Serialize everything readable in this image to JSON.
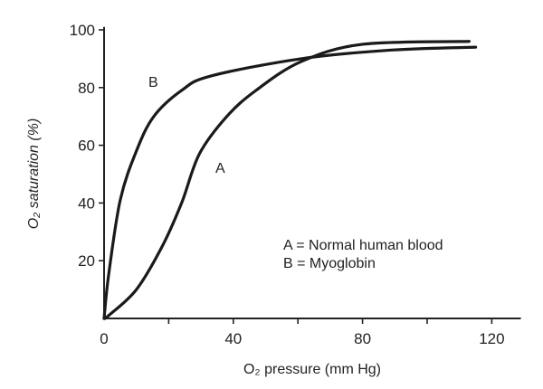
{
  "chart_data": {
    "type": "line",
    "title": "",
    "xlabel": "O₂ pressure (mm Hg)",
    "ylabel": "O₂ saturation (%)",
    "xlim": [
      0,
      129
    ],
    "ylim": [
      0,
      101
    ],
    "xticks": [
      0,
      40,
      80,
      120
    ],
    "xticks_minor": [
      20,
      60,
      100
    ],
    "yticks": [
      20,
      40,
      60,
      80,
      100
    ],
    "grid": false,
    "series": [
      {
        "name": "A",
        "label": "A",
        "legend": "A = Normal human blood",
        "x": [
          0,
          1.4,
          10,
          18,
          24,
          29.5,
          38,
          47,
          61,
          80,
          113
        ],
        "y": [
          0,
          1,
          10,
          25,
          40,
          57,
          70,
          79,
          89,
          95,
          96
        ]
      },
      {
        "name": "B",
        "label": "B",
        "legend": "B = Myoglobin",
        "x": [
          0,
          1.4,
          5,
          10,
          15.4,
          24,
          33,
          61,
          89,
          115
        ],
        "y": [
          0,
          15,
          41,
          58,
          70,
          79,
          84,
          90,
          93,
          94
        ]
      }
    ],
    "curve_labels": [
      {
        "text": "B",
        "x": 16,
        "y": 82
      },
      {
        "text": "A",
        "x": 37,
        "y": 52
      }
    ],
    "legend_placement": "lower-right",
    "colors": {
      "line": "#1a1a1a"
    }
  }
}
